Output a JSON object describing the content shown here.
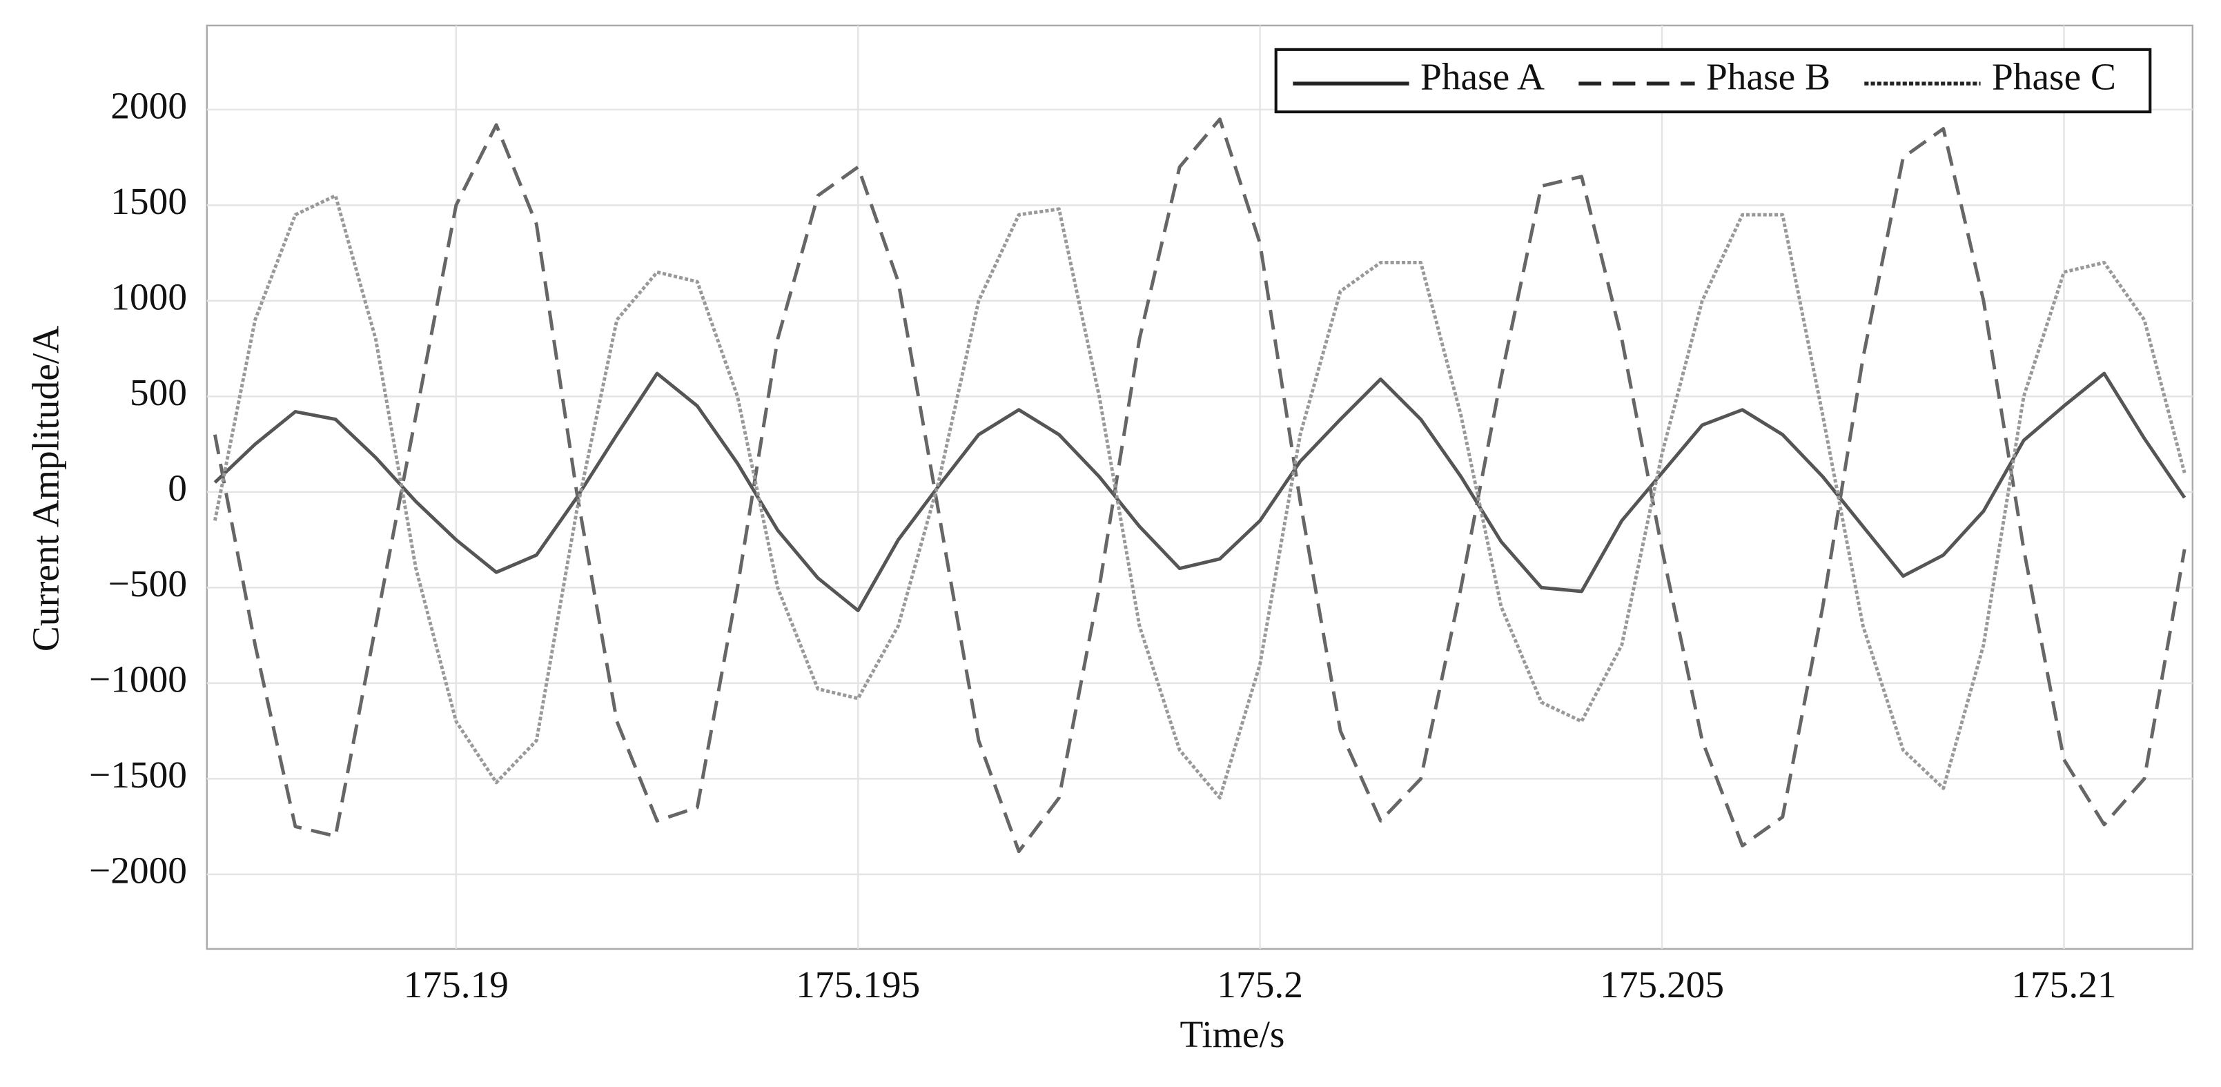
{
  "chart_data": {
    "type": "line",
    "xlabel": "Time/s",
    "ylabel": "Current Amplitude/A",
    "x": [
      175.187,
      175.1875,
      175.188,
      175.1885,
      175.189,
      175.1895,
      175.19,
      175.1905,
      175.191,
      175.1915,
      175.192,
      175.1925,
      175.193,
      175.1935,
      175.194,
      175.1945,
      175.195,
      175.1955,
      175.196,
      175.1965,
      175.197,
      175.1975,
      175.198,
      175.1985,
      175.199,
      175.1995,
      175.2,
      175.2005,
      175.201,
      175.2015,
      175.202,
      175.2025,
      175.203,
      175.2035,
      175.204,
      175.2045,
      175.205,
      175.2055,
      175.206,
      175.2065,
      175.207,
      175.2075,
      175.208,
      175.2085,
      175.209,
      175.2095,
      175.21,
      175.2105,
      175.211,
      175.2115
    ],
    "series": [
      {
        "name": "Phase A",
        "color": "#555555",
        "linestyle": "solid",
        "values": [
          50,
          250,
          420,
          380,
          180,
          -50,
          -250,
          -420,
          -330,
          -30,
          300,
          620,
          450,
          150,
          -200,
          -450,
          -620,
          -250,
          30,
          300,
          430,
          300,
          80,
          -180,
          -400,
          -350,
          -150,
          160,
          380,
          590,
          380,
          80,
          -260,
          -500,
          -520,
          -150,
          100,
          350,
          430,
          300,
          80,
          -180,
          -440,
          -330,
          -100,
          270,
          450,
          620,
          280,
          -30
        ]
      },
      {
        "name": "Phase B",
        "color": "#666666",
        "linestyle": "dashed",
        "values": [
          300,
          -800,
          -1750,
          -1800,
          -700,
          400,
          1500,
          1920,
          1400,
          0,
          -1200,
          -1720,
          -1650,
          -500,
          800,
          1550,
          1700,
          1100,
          -100,
          -1300,
          -1880,
          -1600,
          -500,
          800,
          1700,
          1950,
          1300,
          -50,
          -1250,
          -1720,
          -1500,
          -500,
          600,
          1600,
          1650,
          800,
          -300,
          -1300,
          -1850,
          -1700,
          -600,
          700,
          1750,
          1900,
          1000,
          -300,
          -1400,
          -1740,
          -1500,
          -300
        ]
      },
      {
        "name": "Phase C",
        "color": "#999999",
        "linestyle": "dotted",
        "values": [
          -150,
          900,
          1450,
          1550,
          800,
          -400,
          -1200,
          -1520,
          -1300,
          -100,
          900,
          1150,
          1100,
          500,
          -500,
          -1030,
          -1080,
          -700,
          50,
          1000,
          1450,
          1480,
          500,
          -700,
          -1350,
          -1600,
          -900,
          300,
          1050,
          1200,
          1200,
          400,
          -600,
          -1100,
          -1200,
          -800,
          200,
          1000,
          1450,
          1450,
          400,
          -700,
          -1350,
          -1550,
          -800,
          500,
          1150,
          1200,
          900,
          100
        ]
      }
    ],
    "xlim": [
      175.1869,
      175.2116
    ],
    "xticks": [
      175.19,
      175.195,
      175.2,
      175.205,
      175.21
    ],
    "ylim": [
      -2390,
      2440
    ],
    "yticks": [
      {
        "value": -2000,
        "label": "−2000"
      },
      {
        "value": -1500,
        "label": "−1500"
      },
      {
        "value": -1000,
        "label": "−1000"
      },
      {
        "value": -500,
        "label": "−500"
      },
      0,
      500,
      1000,
      1500,
      2000
    ],
    "grid": true,
    "legend": "upper right"
  }
}
